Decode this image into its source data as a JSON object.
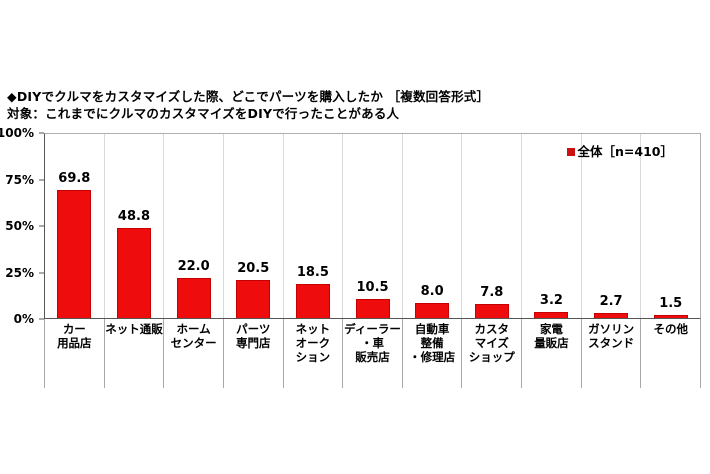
{
  "header": {
    "title": "◆DIYでクルマをカスタマイズした際、どこでパーツを購入したか ［複数回答形式］",
    "subtitle": "対象：これまでにクルマのカスタマイズをDIYで行ったことがある人"
  },
  "legend": {
    "label": "全体［n=410］",
    "marker_color": "#cc1111"
  },
  "colors": {
    "bar_fill": "#ee0c0c",
    "bar_border": "#c40000",
    "gridline": "#d9d9d9",
    "axis_line": "#555555",
    "text": "#000000",
    "background": "#ffffff"
  },
  "chart_data": {
    "type": "bar",
    "title": "◆DIYでクルマをカスタマイズした際、どこでパーツを購入したか ［複数回答形式］",
    "subtitle": "対象：これまでにクルマのカスタマイズをDIYで行ったことがある人",
    "legend_entries": [
      "全体［n=410］"
    ],
    "legend_position": "top-right-inside",
    "xlabel": "",
    "ylabel": "%",
    "ylim": [
      0,
      100
    ],
    "y_ticks": [
      {
        "label": "0%",
        "value": 0
      },
      {
        "label": "25%",
        "value": 25
      },
      {
        "label": "50%",
        "value": 50
      },
      {
        "label": "75%",
        "value": 75
      },
      {
        "label": "100%",
        "value": 100
      }
    ],
    "grid": "vertical-category-separators-only",
    "categories": [
      "カー用品店",
      "ネット通販",
      "ホームセンター",
      "パーツ専門店",
      "ネットオークション",
      "ディーラー・車販売店",
      "自動車整備・修理店",
      "カスタマイズショップ",
      "家電量販店",
      "ガソリンスタンド",
      "その他"
    ],
    "category_lines": [
      [
        "カー",
        "用品店"
      ],
      [
        "ネット通販"
      ],
      [
        "ホーム",
        "センター"
      ],
      [
        "パーツ",
        "専門店"
      ],
      [
        "ネット",
        "オーク",
        "ション"
      ],
      [
        "ディーラー",
        "・車",
        "販売店"
      ],
      [
        "自動車",
        "整備",
        "・修理店"
      ],
      [
        "カスタ",
        "マイズ",
        "ショップ"
      ],
      [
        "家電",
        "量販店"
      ],
      [
        "ガソリン",
        "スタンド"
      ],
      [
        "その他"
      ]
    ],
    "values": [
      69.8,
      48.8,
      22.0,
      20.5,
      18.5,
      10.5,
      8.0,
      7.8,
      3.2,
      2.7,
      1.5
    ],
    "value_labels": [
      "69.8",
      "48.8",
      "22.0",
      "20.5",
      "18.5",
      "10.5",
      "8.0",
      "7.8",
      "3.2",
      "2.7",
      "1.5"
    ]
  }
}
